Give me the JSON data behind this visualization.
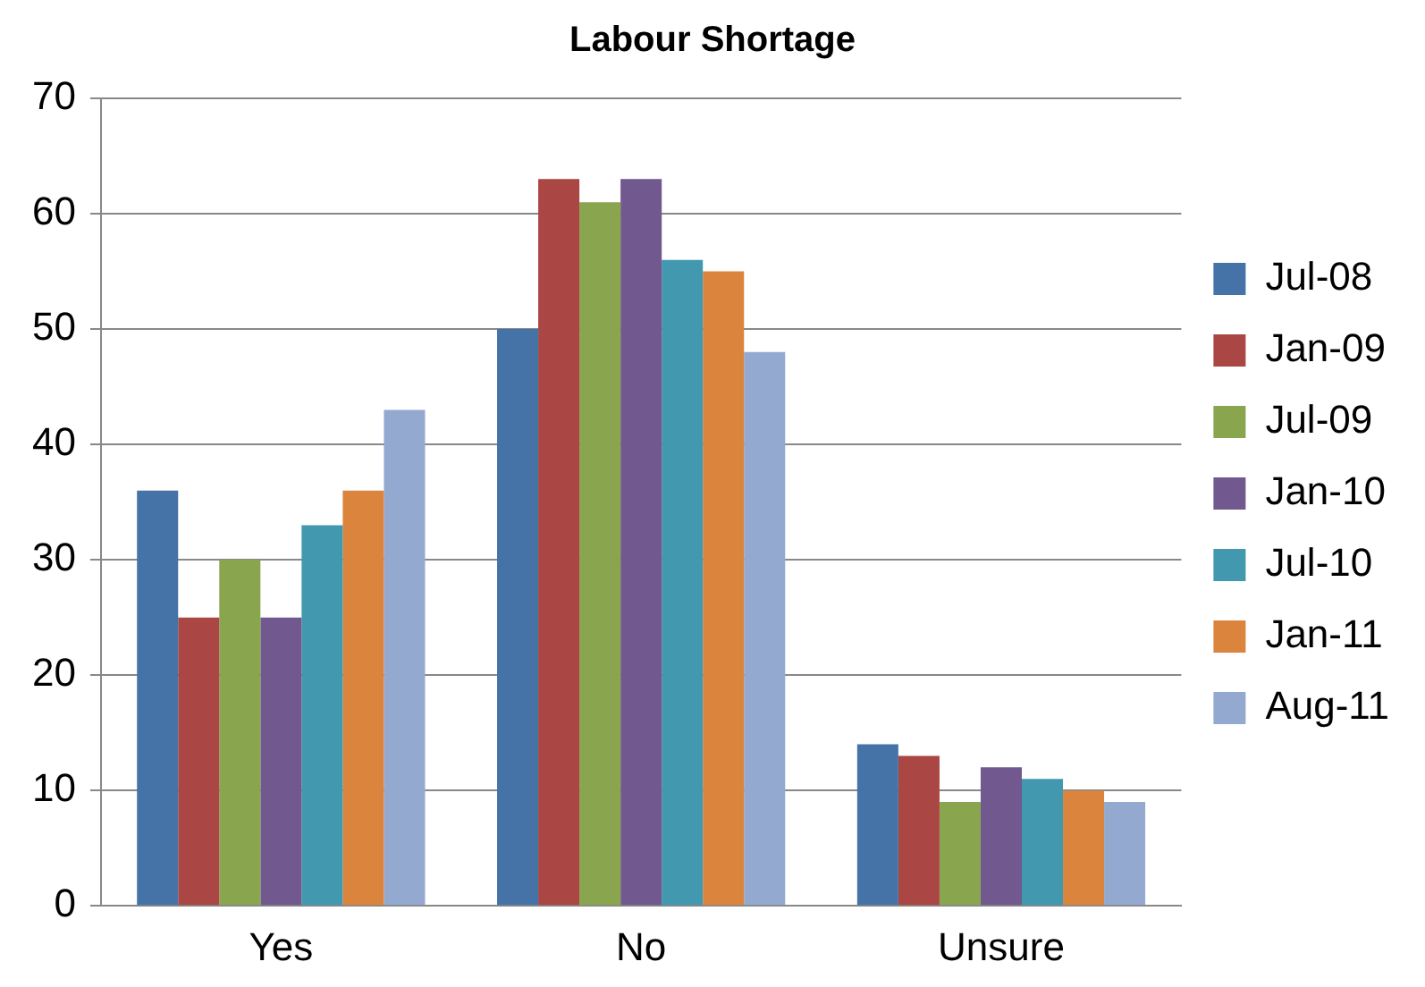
{
  "chart_data": {
    "type": "bar",
    "title": "Labour Shortage",
    "categories": [
      "Yes",
      "No",
      "Unsure"
    ],
    "series": [
      {
        "name": "Jul-08",
        "color": "#4572a7",
        "values": [
          36,
          50,
          14
        ]
      },
      {
        "name": "Jan-09",
        "color": "#aa4643",
        "values": [
          25,
          63,
          13
        ]
      },
      {
        "name": "Jul-09",
        "color": "#89a54e",
        "values": [
          30,
          61,
          9
        ]
      },
      {
        "name": "Jan-10",
        "color": "#71588f",
        "values": [
          25,
          63,
          12
        ]
      },
      {
        "name": "Jul-10",
        "color": "#4198af",
        "values": [
          33,
          56,
          11
        ]
      },
      {
        "name": "Jan-11",
        "color": "#db843d",
        "values": [
          36,
          55,
          10
        ]
      },
      {
        "name": "Aug-11",
        "color": "#93a9cf",
        "values": [
          43,
          48,
          9
        ]
      }
    ],
    "ylim": [
      0,
      70
    ],
    "yticks": [
      0,
      10,
      20,
      30,
      40,
      50,
      60,
      70
    ],
    "grid": "y",
    "legend": "right"
  }
}
